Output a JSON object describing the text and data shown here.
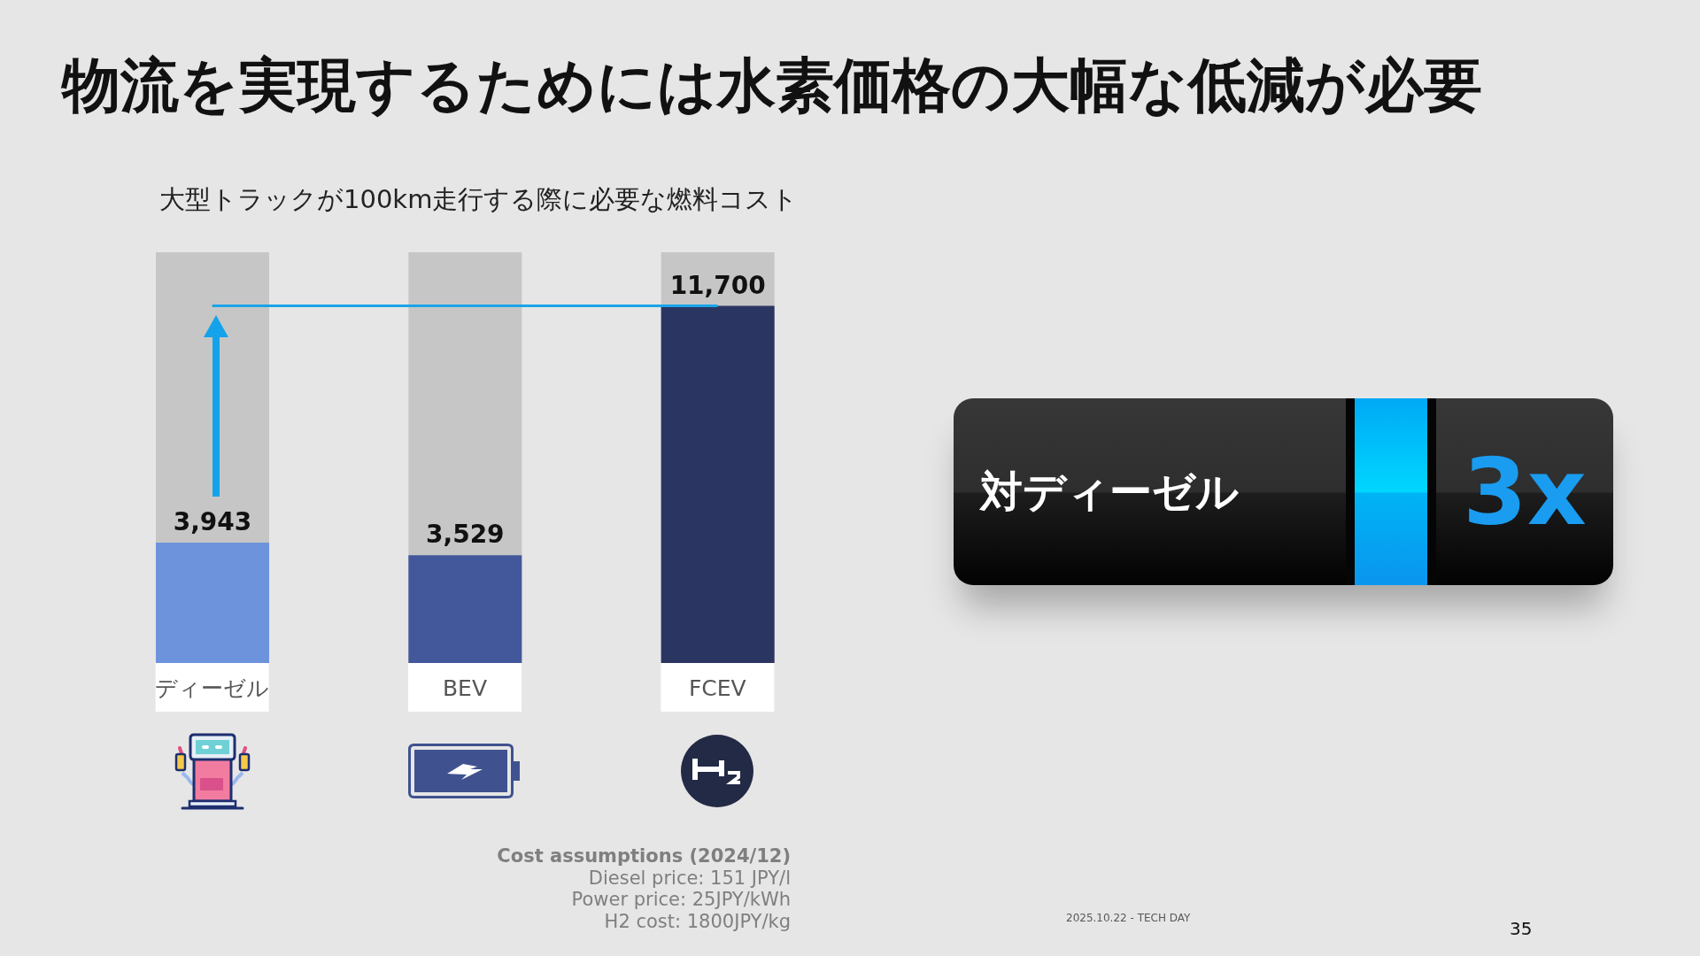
{
  "chart_data": {
    "type": "bar",
    "title": "物流を実現するためには水素価格の大幅な低減が必要",
    "subtitle": "大型トラックが100km走行する際に必要な燃料コスト",
    "categories": [
      "ディーゼル",
      "BEV",
      "FCEV"
    ],
    "values": [
      3943,
      3529,
      11700
    ],
    "colors": [
      "#6d93dc",
      "#43589b",
      "#2b3561"
    ],
    "value_labels": [
      "3,943",
      "3,529",
      "11,700"
    ],
    "ref_lines": [
      {
        "axis": "y",
        "value": 11700,
        "color": "#1aa3e8"
      }
    ],
    "annotations": [
      "対ディーゼル",
      "3x",
      "Cost assumptions (2024/12)",
      "Diesel price: 151 JPY/l",
      "Power price: 25JPY/kWh",
      "H2 cost: 1800JPY/kg",
      "2025.10.22 - TECH DAY",
      "35"
    ]
  }
}
